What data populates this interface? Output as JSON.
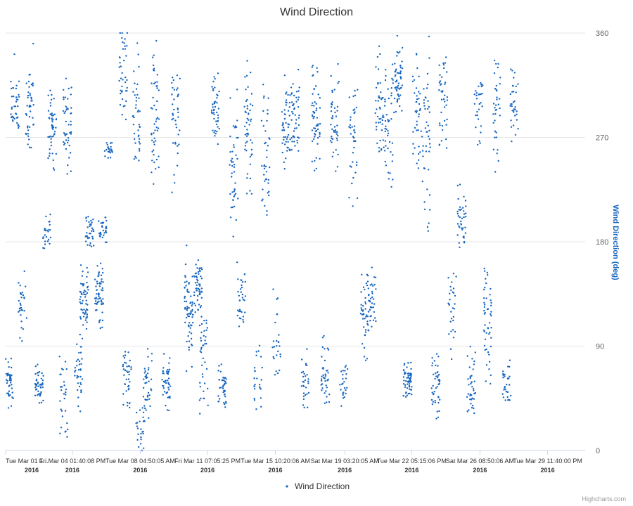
{
  "chart_data": {
    "type": "scatter",
    "title": "Wind Direction",
    "ylabel": "Wind Direction (deg)",
    "ylim": [
      0,
      360
    ],
    "y_ticks": [
      0,
      90,
      180,
      270,
      360
    ],
    "x_ticks": [
      {
        "label": "Tue Mar 01 1...",
        "year": "2016",
        "day": 0.0
      },
      {
        "label": "Fri Mar 04 01:40:08 PM",
        "year": "2016",
        "day": 3.57
      },
      {
        "label": "Tue Mar 08 04:50:05 AM",
        "year": "2016",
        "day": 7.2
      },
      {
        "label": "Fri Mar 11 07:05:25 PM",
        "year": "2016",
        "day": 10.8
      },
      {
        "label": "Tue Mar 15 10:20:06 AM",
        "year": "2016",
        "day": 14.43
      },
      {
        "label": "Sat Mar 19 03:20:05 AM",
        "year": "2016",
        "day": 18.14
      },
      {
        "label": "Tue Mar 22 05:15:06 PM",
        "year": "2016",
        "day": 21.72
      },
      {
        "label": "Sat Mar 26 08:50:06 AM",
        "year": "2016",
        "day": 25.37
      },
      {
        "label": "Tue Mar 29 11:40:00 PM",
        "year": "2016",
        "day": 28.99
      }
    ],
    "x_range_days": [
      0,
      31
    ],
    "series": [
      {
        "name": "Wind Direction",
        "color": "#1565c0",
        "marker": "dot",
        "clusters": [
          {
            "day": 0.2,
            "center": 60,
            "spread": 12,
            "n": 45
          },
          {
            "day": 0.5,
            "center": 290,
            "spread": 25,
            "n": 40
          },
          {
            "day": 0.9,
            "center": 130,
            "spread": 20,
            "n": 30
          },
          {
            "day": 1.3,
            "center": 300,
            "spread": 30,
            "n": 45
          },
          {
            "day": 1.8,
            "center": 55,
            "spread": 12,
            "n": 45
          },
          {
            "day": 2.2,
            "center": 190,
            "spread": 12,
            "n": 25
          },
          {
            "day": 2.5,
            "center": 275,
            "spread": 25,
            "n": 50
          },
          {
            "day": 3.1,
            "center": 40,
            "spread": 25,
            "n": 30
          },
          {
            "day": 3.3,
            "center": 285,
            "spread": 25,
            "n": 45
          },
          {
            "day": 3.9,
            "center": 65,
            "spread": 20,
            "n": 35
          },
          {
            "day": 4.2,
            "center": 130,
            "spread": 20,
            "n": 60
          },
          {
            "day": 4.5,
            "center": 190,
            "spread": 10,
            "n": 35
          },
          {
            "day": 5.0,
            "center": 135,
            "spread": 20,
            "n": 60
          },
          {
            "day": 5.2,
            "center": 190,
            "spread": 8,
            "n": 30
          },
          {
            "day": 5.5,
            "center": 260,
            "spread": 5,
            "n": 25
          },
          {
            "day": 6.3,
            "center": 325,
            "spread": 30,
            "n": 40
          },
          {
            "day": 6.5,
            "center": 60,
            "spread": 18,
            "n": 40
          },
          {
            "day": 7.0,
            "center": 290,
            "spread": 40,
            "n": 40
          },
          {
            "day": 7.2,
            "center": 20,
            "spread": 15,
            "n": 25
          },
          {
            "day": 7.6,
            "center": 55,
            "spread": 20,
            "n": 40
          },
          {
            "day": 8.0,
            "center": 290,
            "spread": 40,
            "n": 50
          },
          {
            "day": 8.6,
            "center": 60,
            "spread": 15,
            "n": 45
          },
          {
            "day": 9.1,
            "center": 285,
            "spread": 35,
            "n": 40
          },
          {
            "day": 9.8,
            "center": 120,
            "spread": 30,
            "n": 70
          },
          {
            "day": 10.3,
            "center": 140,
            "spread": 15,
            "n": 55
          },
          {
            "day": 10.6,
            "center": 80,
            "spread": 30,
            "n": 40
          },
          {
            "day": 11.2,
            "center": 295,
            "spread": 20,
            "n": 45
          },
          {
            "day": 11.6,
            "center": 55,
            "spread": 12,
            "n": 40
          },
          {
            "day": 12.2,
            "center": 250,
            "spread": 45,
            "n": 45
          },
          {
            "day": 12.6,
            "center": 130,
            "spread": 20,
            "n": 35
          },
          {
            "day": 13.0,
            "center": 275,
            "spread": 45,
            "n": 50
          },
          {
            "day": 13.5,
            "center": 60,
            "spread": 18,
            "n": 25
          },
          {
            "day": 13.9,
            "center": 250,
            "spread": 45,
            "n": 40
          },
          {
            "day": 14.5,
            "center": 100,
            "spread": 30,
            "n": 25
          },
          {
            "day": 15.0,
            "center": 280,
            "spread": 25,
            "n": 50
          },
          {
            "day": 15.5,
            "center": 290,
            "spread": 25,
            "n": 45
          },
          {
            "day": 16.0,
            "center": 60,
            "spread": 15,
            "n": 30
          },
          {
            "day": 16.6,
            "center": 290,
            "spread": 30,
            "n": 55
          },
          {
            "day": 17.1,
            "center": 65,
            "spread": 20,
            "n": 40
          },
          {
            "day": 17.6,
            "center": 280,
            "spread": 30,
            "n": 45
          },
          {
            "day": 18.1,
            "center": 60,
            "spread": 15,
            "n": 25
          },
          {
            "day": 18.6,
            "center": 270,
            "spread": 40,
            "n": 40
          },
          {
            "day": 19.2,
            "center": 120,
            "spread": 25,
            "n": 45
          },
          {
            "day": 19.6,
            "center": 130,
            "spread": 20,
            "n": 35
          },
          {
            "day": 20.0,
            "center": 295,
            "spread": 35,
            "n": 45
          },
          {
            "day": 20.5,
            "center": 280,
            "spread": 40,
            "n": 45
          },
          {
            "day": 21.0,
            "center": 320,
            "spread": 20,
            "n": 55
          },
          {
            "day": 21.5,
            "center": 60,
            "spread": 12,
            "n": 60
          },
          {
            "day": 22.0,
            "center": 290,
            "spread": 40,
            "n": 40
          },
          {
            "day": 22.5,
            "center": 270,
            "spread": 50,
            "n": 45
          },
          {
            "day": 23.0,
            "center": 60,
            "spread": 20,
            "n": 45
          },
          {
            "day": 23.4,
            "center": 300,
            "spread": 30,
            "n": 40
          },
          {
            "day": 23.9,
            "center": 120,
            "spread": 25,
            "n": 30
          },
          {
            "day": 24.4,
            "center": 200,
            "spread": 20,
            "n": 40
          },
          {
            "day": 24.9,
            "center": 60,
            "spread": 20,
            "n": 40
          },
          {
            "day": 25.3,
            "center": 295,
            "spread": 20,
            "n": 30
          },
          {
            "day": 25.8,
            "center": 110,
            "spread": 35,
            "n": 50
          },
          {
            "day": 26.3,
            "center": 300,
            "spread": 35,
            "n": 35
          },
          {
            "day": 26.8,
            "center": 55,
            "spread": 15,
            "n": 30
          },
          {
            "day": 27.2,
            "center": 300,
            "spread": 25,
            "n": 35
          }
        ]
      }
    ],
    "grid_y": true,
    "legend": {
      "position": "bottom-center",
      "entries": [
        "Wind Direction"
      ]
    },
    "credits": "Highcharts.com"
  }
}
